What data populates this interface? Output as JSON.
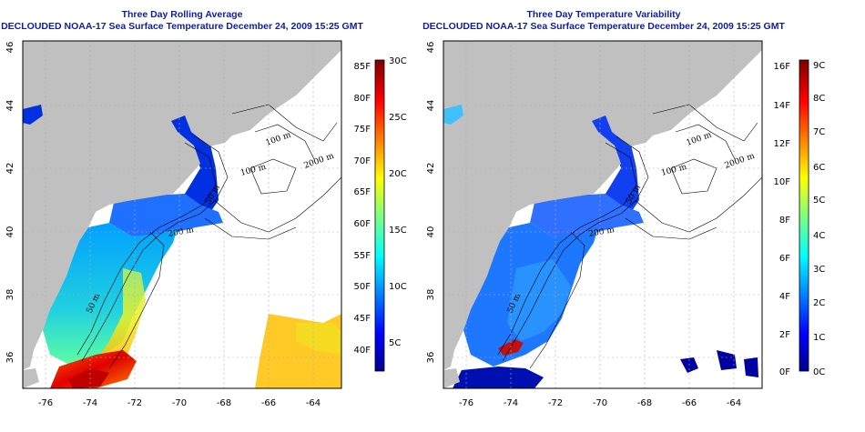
{
  "panels": [
    {
      "title": "Three Day Rolling Average",
      "subtitle": "DECLOUDED NOAA-17 Sea Surface Temperature December 24, 2009 15:25 GMT",
      "colorbar_f_labels": [
        "85F",
        "80F",
        "75F",
        "70F",
        "65F",
        "60F",
        "55F",
        "50F",
        "45F",
        "40F"
      ],
      "colorbar_c_labels": [
        "30C",
        "25C",
        "20C",
        "15C",
        "10C",
        "5C"
      ],
      "contour_labels": [
        "100 m",
        "2000 m",
        "100 m",
        "50 m",
        "200 m",
        "50 m"
      ]
    },
    {
      "title": "Three Day Temperature Variability",
      "subtitle": "DECLOUDED NOAA-17 Sea Surface Temperature December 24, 2009 15:25 GMT",
      "colorbar_f_labels": [
        "16F",
        "14F",
        "12F",
        "10F",
        "8F",
        "6F",
        "4F",
        "2F",
        "0F"
      ],
      "colorbar_c_labels": [
        "9C",
        "8C",
        "7C",
        "6C",
        "5C",
        "4C",
        "3C",
        "2C",
        "1C",
        "0C"
      ],
      "contour_labels": [
        "100 m",
        "2000 m",
        "100 m",
        "50 m",
        "200 m",
        "50 m"
      ]
    }
  ],
  "axes": {
    "x_ticks": [
      "-76",
      "-74",
      "-72",
      "-70",
      "-68",
      "-66",
      "-64"
    ],
    "y_ticks": [
      "46",
      "44",
      "42",
      "40",
      "38",
      "36"
    ]
  },
  "colors": {
    "land": "#c0c0c0",
    "title_text": "#1020a0",
    "grid": "#b0b0b0"
  }
}
